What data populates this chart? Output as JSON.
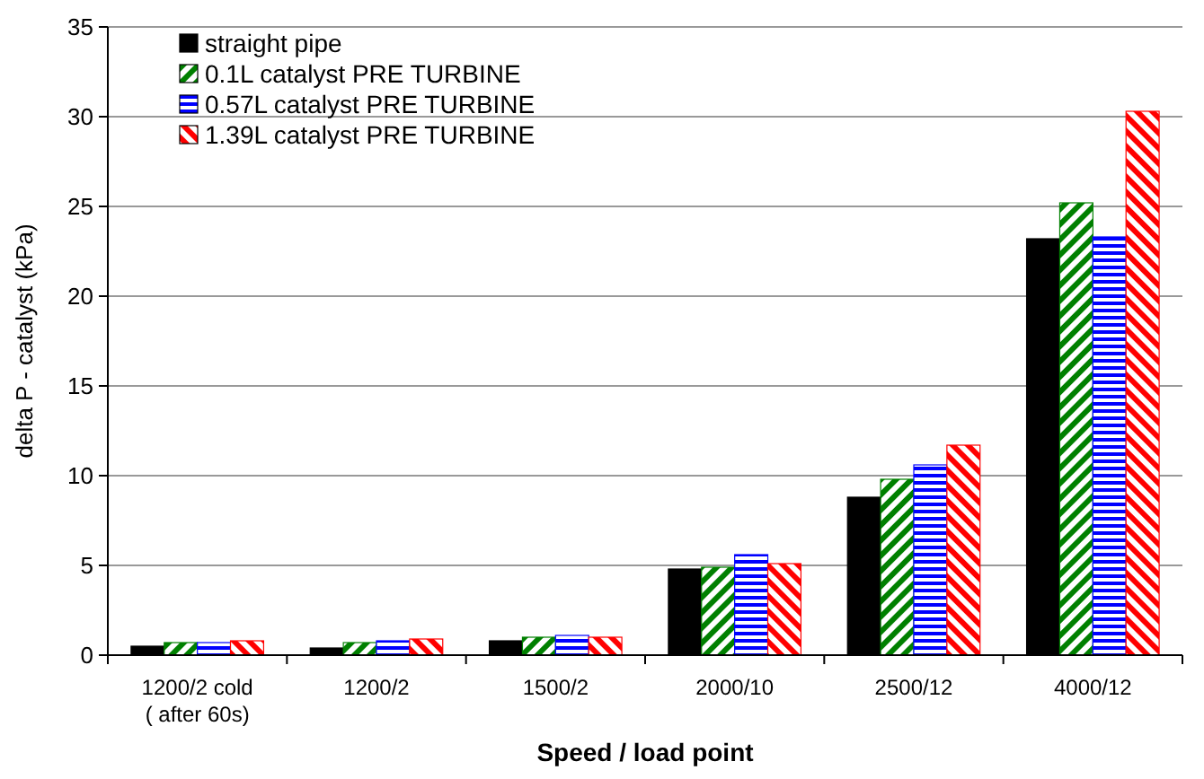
{
  "chart_data": {
    "type": "bar",
    "xlabel": "Speed / load point",
    "ylabel": "delta P - catalyst (kPa)",
    "categories": [
      "1200/2 cold\n( after 60s)",
      "1200/2",
      "1500/2",
      "2000/10",
      "2500/12",
      "4000/12"
    ],
    "series": [
      {
        "name": "straight pipe",
        "color": "#000000",
        "values": [
          0.5,
          0.4,
          0.8,
          4.8,
          8.8,
          23.2
        ]
      },
      {
        "name": "0.1L catalyst PRE TURBINE",
        "color": "#008000",
        "values": [
          0.7,
          0.7,
          1.0,
          4.9,
          9.8,
          25.2
        ]
      },
      {
        "name": "0.57L catalyst PRE TURBINE",
        "color": "#0000ff",
        "values": [
          0.7,
          0.8,
          1.1,
          5.6,
          10.6,
          23.3
        ]
      },
      {
        "name": "1.39L catalyst PRE TURBINE",
        "color": "#ff0000",
        "values": [
          0.8,
          0.9,
          1.0,
          5.1,
          11.7,
          30.3
        ]
      }
    ],
    "ylim": [
      0,
      35
    ],
    "yticks": [
      0,
      5,
      10,
      15,
      20,
      25,
      30,
      35
    ],
    "grid": "y",
    "legend": "top left"
  }
}
